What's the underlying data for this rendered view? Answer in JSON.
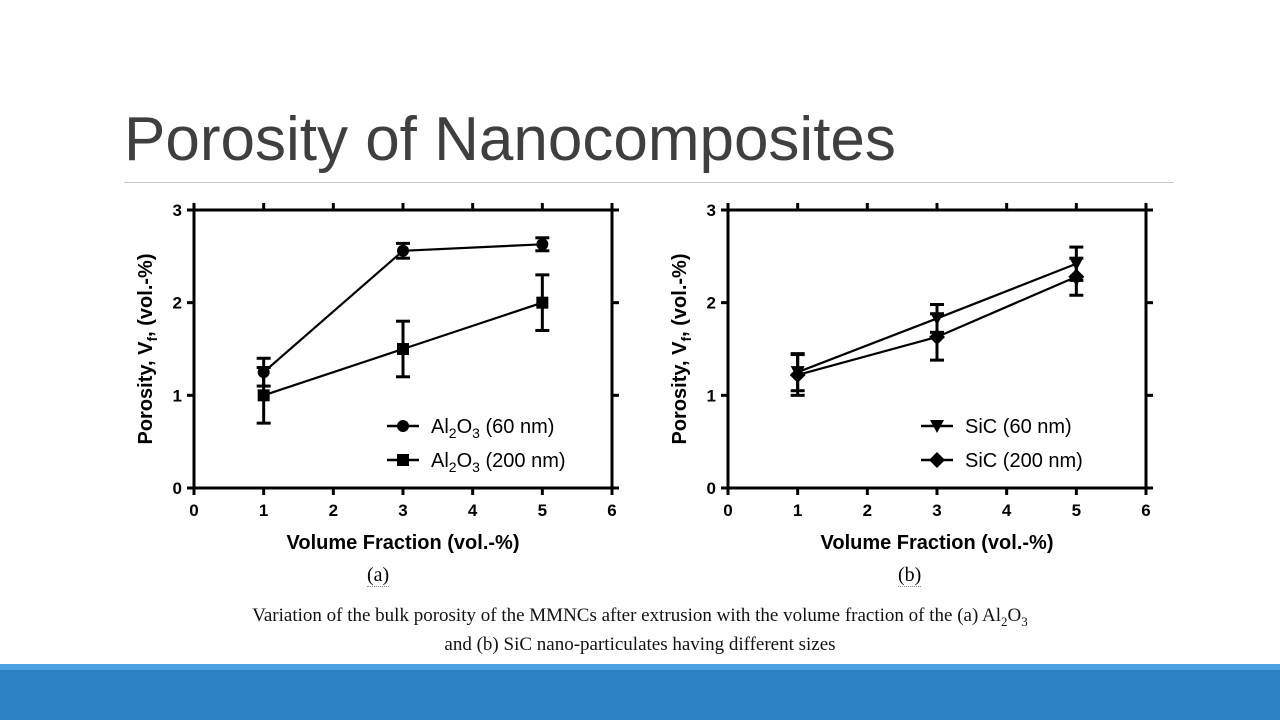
{
  "slide": {
    "title": "Porosity of Nanocomposites",
    "panel_a": "(a)",
    "panel_b": "(b)",
    "caption_line1": "Variation of the bulk porosity of the MMNCs after extrusion with the volume fraction of the (a) Al",
    "caption_sub1": "2",
    "caption_mid": "O",
    "caption_sub2": "3",
    "caption_line2": "and (b) SiC nano-particulates having different sizes"
  },
  "chart_data": [
    {
      "type": "line",
      "xlabel": "Volume Fraction (vol.-%)",
      "ylabel": "Porosity, Vf, (vol.-%)",
      "xlim": [
        0,
        6
      ],
      "ylim": [
        0,
        3
      ],
      "xticks": [
        0,
        1,
        2,
        3,
        4,
        5,
        6
      ],
      "yticks": [
        0,
        1,
        2,
        3
      ],
      "grid": false,
      "legend_position": "bottom-right",
      "series": [
        {
          "name": "Al2O3 (60 nm)",
          "marker": "circle",
          "x": [
            1,
            3,
            5
          ],
          "y": [
            1.25,
            2.56,
            2.63
          ],
          "err": [
            0.15,
            0.08,
            0.07
          ]
        },
        {
          "name": "Al2O3 (200 nm)",
          "marker": "square",
          "x": [
            1,
            3,
            5
          ],
          "y": [
            1.0,
            1.5,
            2.0
          ],
          "err": [
            0.3,
            0.3,
            0.3
          ]
        }
      ]
    },
    {
      "type": "line",
      "xlabel": "Volume Fraction (vol.-%)",
      "ylabel": "Porosity, Vf, (vol.-%)",
      "xlim": [
        0,
        6
      ],
      "ylim": [
        0,
        3
      ],
      "xticks": [
        0,
        1,
        2,
        3,
        4,
        5,
        6
      ],
      "yticks": [
        0,
        1,
        2,
        3
      ],
      "grid": false,
      "legend_position": "bottom-right",
      "series": [
        {
          "name": "SiC (60 nm)",
          "marker": "triangle-down",
          "x": [
            1,
            3,
            5
          ],
          "y": [
            1.25,
            1.83,
            2.42
          ],
          "err": [
            0.2,
            0.15,
            0.18
          ]
        },
        {
          "name": "SiC (200 nm)",
          "marker": "diamond",
          "x": [
            1,
            3,
            5
          ],
          "y": [
            1.22,
            1.63,
            2.28
          ],
          "err": [
            0.22,
            0.25,
            0.2
          ]
        }
      ]
    }
  ]
}
